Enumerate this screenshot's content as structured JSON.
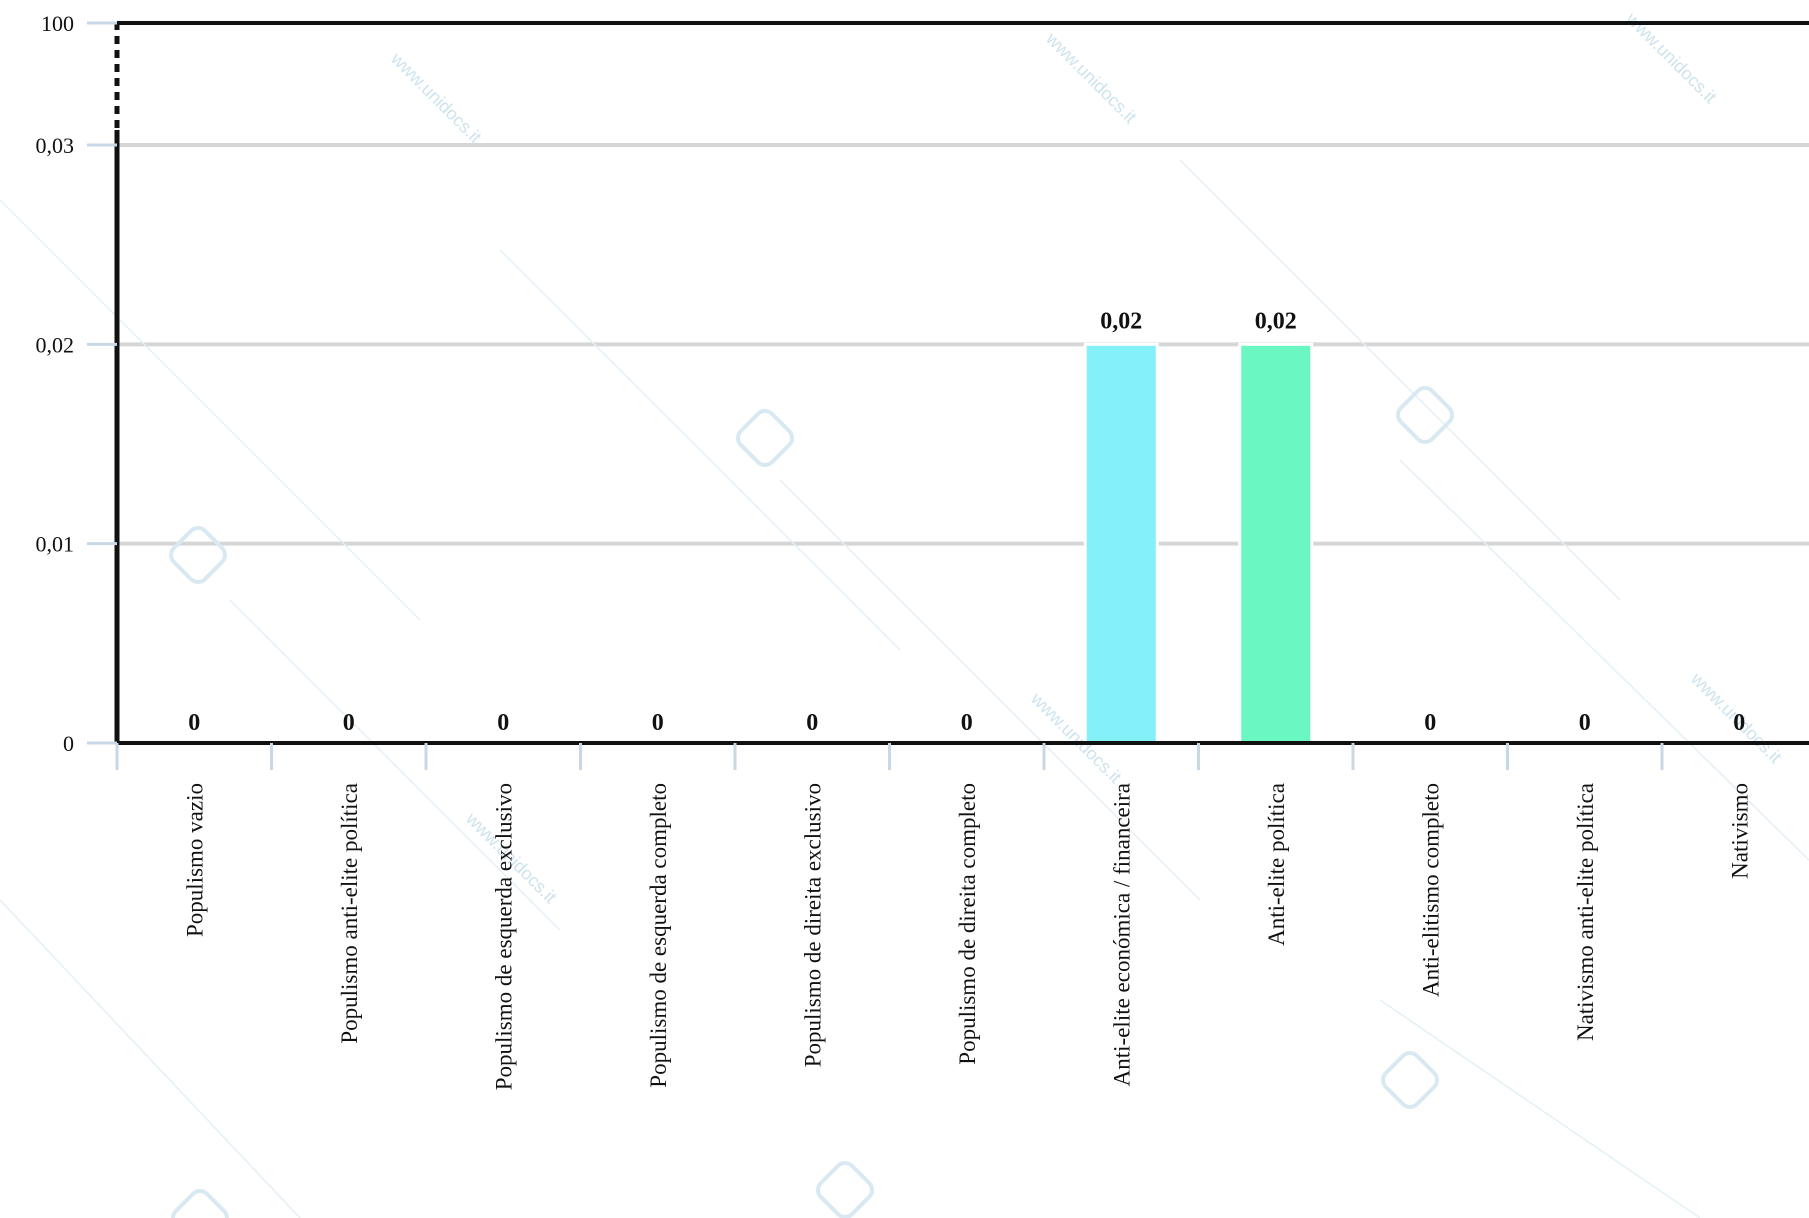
{
  "chart_data": {
    "type": "bar",
    "categories": [
      "Populismo vazio",
      "Populismo anti-elite política",
      "Populismo de esquerda exclusivo",
      "Populismo de esquerda completo",
      "Populismo de direita exclusivo",
      "Populismo de direita completo",
      "Anti-elite económica / financeira",
      "Anti-elite política",
      "Anti-elitismo completo",
      "Nativismo anti-elite política",
      "Nativismo"
    ],
    "values": [
      0,
      0,
      0,
      0,
      0,
      0,
      0.02,
      0.02,
      0,
      0,
      0
    ],
    "value_labels": [
      "0",
      "0",
      "0",
      "0",
      "0",
      "0",
      "0,02",
      "0,02",
      "0",
      "0",
      "0"
    ],
    "bar_colors": [
      "#84f0f7",
      "#6af7c2"
    ],
    "y_ticks": [
      {
        "value": 0,
        "label": "0"
      },
      {
        "value": 0.01,
        "label": "0,01"
      },
      {
        "value": 0.02,
        "label": "0,02"
      },
      {
        "value": 0.03,
        "label": "0,03"
      },
      {
        "value": 100,
        "label": "100"
      }
    ],
    "y_scale": "broken",
    "grid": true,
    "title": "",
    "xlabel": "",
    "ylabel": ""
  },
  "watermark": {
    "text": "www.unidocs.it",
    "logo_icon": "unidocs-logo-icon"
  }
}
